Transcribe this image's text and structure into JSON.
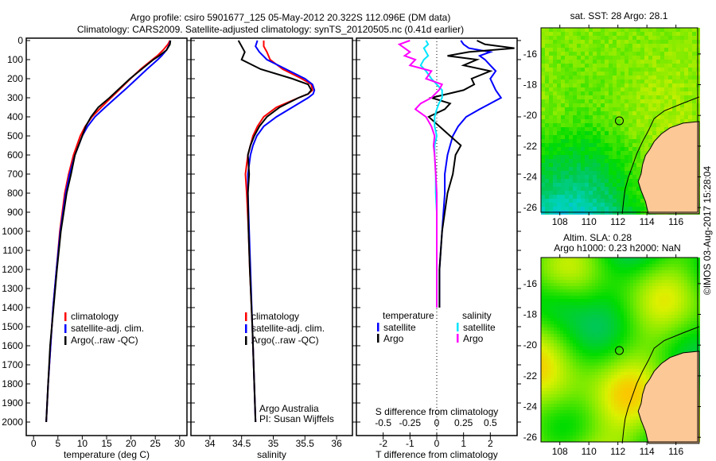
{
  "title": {
    "line1": "Argo profile: csiro 5901677_125 05-May-2012 20.322S 112.096E (DM data)",
    "line2": "Climatology: CARS2009. Satellite-adjusted climatology: synTS_20120505.nc (0.41d earlier)"
  },
  "footer": "©IMOS 03-Aug-2017 15:28:04",
  "colors": {
    "climatology": "#ff0000",
    "satellite": "#0000ff",
    "argo": "#000000",
    "sal_satellite": "#00e5ff",
    "sal_argo": "#ff00ff",
    "land": "#fcc896"
  },
  "chart_data": [
    {
      "type": "line",
      "id": "temperature",
      "xlabel": "temperature (deg C)",
      "ylabel": "",
      "xlim": [
        -1.5,
        31.5
      ],
      "ylim": [
        2070,
        0
      ],
      "xticks": [
        0,
        5,
        10,
        15,
        20,
        25,
        30
      ],
      "yticks": [
        0,
        100,
        200,
        300,
        400,
        500,
        600,
        700,
        800,
        900,
        1000,
        1100,
        1200,
        1300,
        1400,
        1500,
        1600,
        1700,
        1800,
        1900,
        2000
      ],
      "legend": {
        "placement": "bottom-center",
        "entries": [
          "climatology",
          "satellite-adj. clim.",
          "Argo(..raw -QC)"
        ]
      },
      "depth": [
        0,
        20,
        50,
        80,
        100,
        150,
        200,
        250,
        300,
        350,
        400,
        450,
        500,
        600,
        700,
        800,
        1000,
        1200,
        1400,
        1600,
        1800,
        2000
      ],
      "series": [
        {
          "name": "climatology",
          "color": "#ff0000",
          "values": [
            28.0,
            27.6,
            26.6,
            25.4,
            24.4,
            22.0,
            19.9,
            17.9,
            15.9,
            13.9,
            12.0,
            10.6,
            9.6,
            8.2,
            7.2,
            6.4,
            5.4,
            4.7,
            4.0,
            3.5,
            3.0,
            2.6
          ]
        },
        {
          "name": "satellite-adj. clim.",
          "color": "#0000ff",
          "values": [
            28.1,
            27.9,
            27.3,
            26.3,
            25.5,
            23.3,
            21.2,
            19.1,
            16.9,
            14.7,
            12.6,
            11.1,
            10.0,
            8.5,
            7.4,
            6.6,
            5.5,
            4.7,
            4.0,
            3.5,
            3.0,
            2.6
          ]
        },
        {
          "name": "Argo(..raw -QC)",
          "color": "#000000",
          "values": [
            28.1,
            28.0,
            27.3,
            25.8,
            24.6,
            22.2,
            19.8,
            17.7,
            15.6,
            13.3,
            11.8,
            10.7,
            10.0,
            8.5,
            7.7,
            6.8,
            5.6,
            4.8,
            4.1,
            3.4,
            3.0,
            2.6
          ]
        }
      ]
    },
    {
      "type": "line",
      "id": "salinity",
      "xlabel": "salinity",
      "xlim": [
        33.7,
        36.25
      ],
      "ylim": [
        2070,
        0
      ],
      "xticks": [
        34,
        34.5,
        35,
        35.5,
        36
      ],
      "legend": {
        "placement": "bottom-right",
        "entries": [
          "climatology",
          "satellite-adj. clim.",
          "Argo(..raw -QC)"
        ]
      },
      "annotation": [
        "Argo Australia",
        "PI: Susan Wijffels"
      ],
      "depth": [
        0,
        30,
        60,
        100,
        150,
        200,
        230,
        260,
        280,
        300,
        350,
        400,
        450,
        500,
        550,
        600,
        700,
        800,
        1000,
        1200,
        1500,
        1800,
        2000
      ],
      "series": [
        {
          "name": "climatology",
          "color": "#ff0000",
          "values": [
            34.85,
            34.85,
            34.9,
            34.95,
            35.15,
            35.45,
            35.6,
            35.62,
            35.55,
            35.4,
            35.05,
            34.85,
            34.75,
            34.68,
            34.64,
            34.6,
            34.56,
            34.58,
            34.61,
            34.63,
            34.67,
            34.7,
            34.72
          ]
        },
        {
          "name": "satellite-adj. clim.",
          "color": "#0000ff",
          "values": [
            34.75,
            34.72,
            34.78,
            34.9,
            35.2,
            35.5,
            35.62,
            35.65,
            35.63,
            35.55,
            35.3,
            35.05,
            34.85,
            34.74,
            34.68,
            34.64,
            34.6,
            34.6,
            34.62,
            34.64,
            34.67,
            34.7,
            34.72
          ]
        },
        {
          "name": "Argo(..raw -QC)",
          "color": "#000000",
          "values": [
            34.45,
            34.5,
            34.55,
            34.5,
            34.8,
            35.3,
            35.55,
            35.6,
            35.55,
            35.4,
            35.1,
            34.9,
            34.78,
            34.7,
            34.64,
            34.6,
            34.62,
            34.6,
            34.61,
            34.63,
            34.67,
            34.7,
            34.72
          ]
        }
      ]
    },
    {
      "type": "line",
      "id": "differences",
      "xlabel": "T difference from climatology",
      "x2label": "S difference from climatology",
      "xlim": [
        -3,
        3
      ],
      "x2lim": [
        -0.75,
        0.75
      ],
      "xticks": [
        -2,
        -1,
        0,
        1,
        2
      ],
      "x2ticks": [
        -0.5,
        -0.25,
        0,
        0.25,
        0.5
      ],
      "x2ticklabels": [
        "-0.5",
        "-0.25",
        "0",
        "0.25",
        "0.5"
      ],
      "ylim": [
        2070,
        0
      ],
      "legend": {
        "temperature_header": "temperature",
        "salinity_header": "salinity",
        "entries": [
          "satellite",
          "Argo",
          "satellite",
          "Argo"
        ]
      },
      "depth": [
        0,
        20,
        40,
        60,
        80,
        100,
        130,
        160,
        200,
        230,
        260,
        300,
        330,
        360,
        400,
        450,
        500,
        550,
        600,
        700,
        800,
        900,
        1000,
        1200,
        1400
      ],
      "series": [
        {
          "name": "T satellite",
          "color": "#0000ff",
          "values": [
            0.9,
            1.0,
            1.2,
            2.0,
            1.6,
            1.8,
            2.0,
            2.2,
            2.0,
            2.1,
            2.2,
            2.4,
            2.0,
            1.6,
            1.1,
            0.8,
            0.6,
            0.5,
            0.4,
            0.3,
            0.3,
            0.25,
            0.2,
            0.1,
            0.1
          ]
        },
        {
          "name": "T Argo",
          "color": "#000000",
          "values": [
            1.5,
            1.8,
            2.9,
            1.2,
            0.4,
            1.5,
            1.0,
            2.0,
            1.3,
            1.4,
            1.0,
            -0.2,
            0.5,
            0.3,
            -0.3,
            0.1,
            0.5,
            0.9,
            0.7,
            0.6,
            0.4,
            0.3,
            0.2,
            0.1,
            0.1
          ]
        },
        {
          "name": "S satellite",
          "color": "#00e5ff",
          "values": [
            -0.1,
            -0.08,
            -0.12,
            -0.1,
            -0.08,
            -0.12,
            -0.15,
            -0.1,
            -0.05,
            0.0,
            0.05,
            0.05,
            0.02,
            0.0,
            -0.02,
            -0.02,
            0.0,
            -0.02,
            -0.02,
            -0.01,
            -0.01,
            0.0,
            0.0,
            0.0,
            0.0
          ]
        },
        {
          "name": "S Argo",
          "color": "#ff00ff",
          "values": [
            -0.25,
            -0.35,
            -0.3,
            -0.25,
            -0.3,
            -0.2,
            -0.25,
            -0.05,
            -0.1,
            0.05,
            0.02,
            -0.05,
            -0.15,
            -0.2,
            -0.1,
            -0.05,
            -0.02,
            -0.03,
            -0.02,
            -0.01,
            0.0,
            0.0,
            0.0,
            0.0,
            0.0
          ]
        }
      ]
    },
    {
      "type": "heatmap",
      "id": "sst-map",
      "title": "sat. SST: 28 Argo: 28.1",
      "xlim": [
        106.7,
        117.5
      ],
      "ylim": [
        -26.3,
        -14.3
      ],
      "xticks": [
        108,
        110,
        112,
        114,
        116
      ],
      "yticks": [
        -16,
        -18,
        -20,
        -22,
        -24,
        -26
      ],
      "float_position": [
        112.1,
        -20.35
      ]
    },
    {
      "type": "heatmap",
      "id": "sla-map",
      "title": "Altim. SLA: 0.28",
      "subtitle": "Argo h1000: 0.23 h2000: NaN",
      "xlim": [
        106.7,
        117.5
      ],
      "ylim": [
        -26.3,
        -14.3
      ],
      "xticks": [
        108,
        110,
        112,
        114,
        116
      ],
      "yticks": [
        -16,
        -18,
        -20,
        -22,
        -24,
        -26
      ],
      "float_position": [
        112.1,
        -20.35
      ]
    }
  ]
}
